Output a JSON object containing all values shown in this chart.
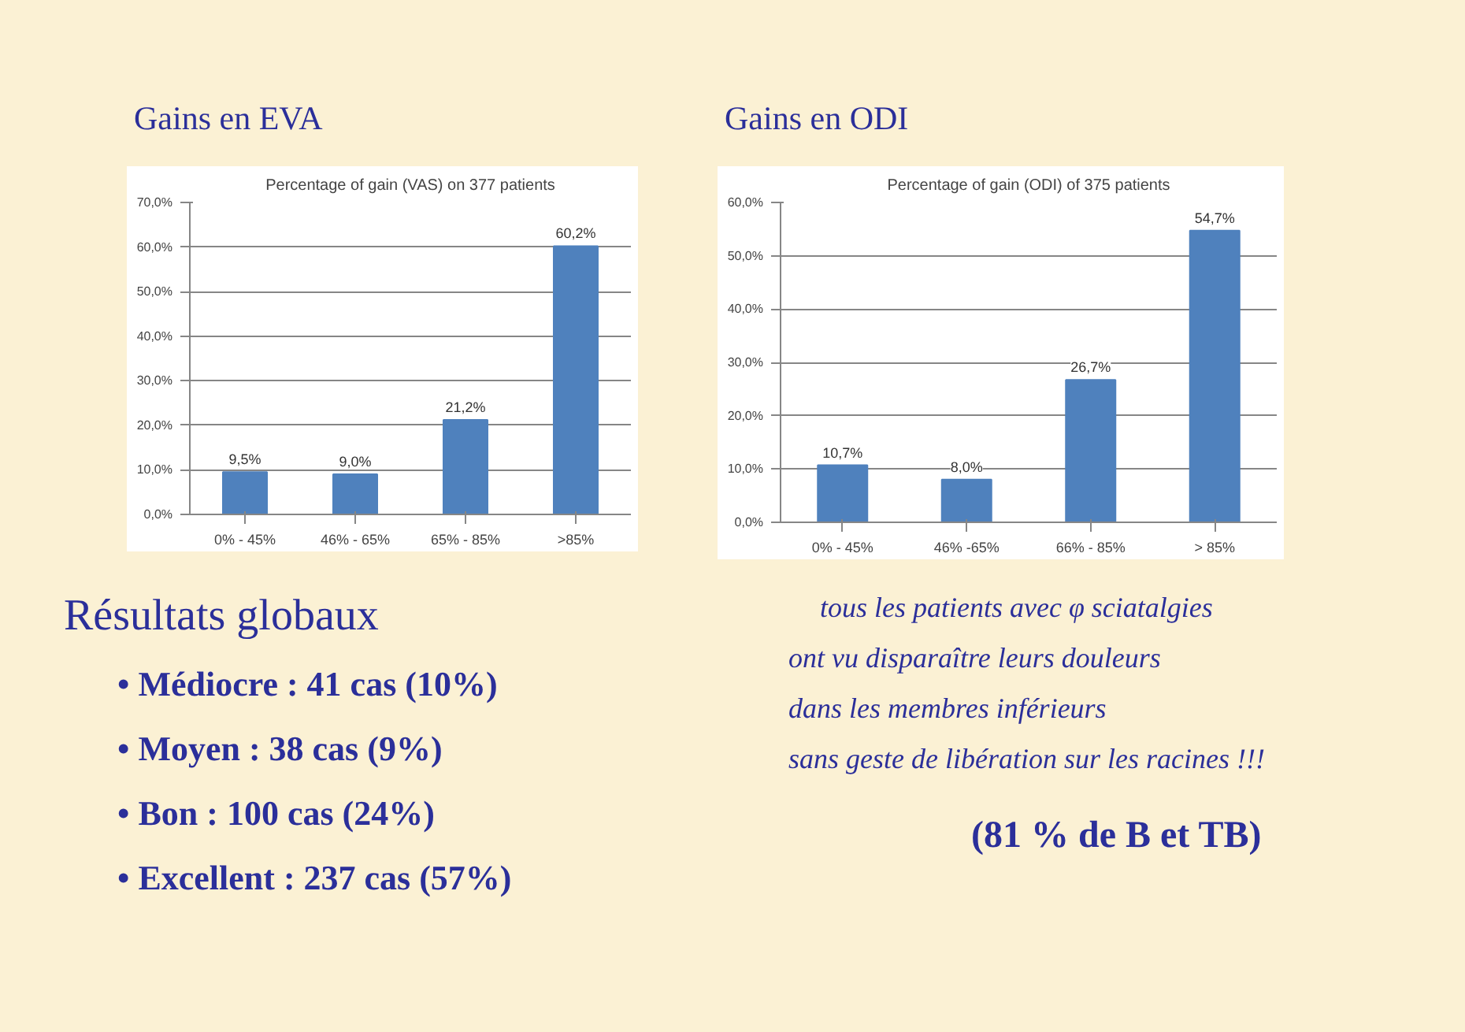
{
  "chart_data": [
    {
      "type": "bar",
      "subtitle": "Gains en EVA",
      "title": "Percentage of gain (VAS) on 377 patients",
      "categories": [
        "0% - 45%",
        "46% - 65%",
        "65% - 85%",
        ">85%"
      ],
      "values": [
        9.5,
        9.0,
        21.2,
        60.2
      ],
      "value_labels": [
        "9,5%",
        "9,0%",
        "21,2%",
        "60,2%"
      ],
      "color": "#4f81bd",
      "ylim": [
        0,
        70
      ],
      "yticks": [
        {
          "value": 0,
          "label": "0,0%"
        },
        {
          "value": 10,
          "label": "10,0%"
        },
        {
          "value": 20,
          "label": "20,0%"
        },
        {
          "value": 30,
          "label": "30,0%"
        },
        {
          "value": 40,
          "label": "40,0%"
        },
        {
          "value": 50,
          "label": "50,0%"
        },
        {
          "value": 60,
          "label": "60,0%"
        },
        {
          "value": 70,
          "label": "70,0%"
        }
      ],
      "grid": "y"
    },
    {
      "type": "bar",
      "subtitle": "Gains en ODI",
      "title": "Percentage of gain (ODI) of 375 patients",
      "categories": [
        "0% - 45%",
        "46% -65%",
        "66% - 85%",
        "> 85%"
      ],
      "values": [
        10.7,
        8.0,
        26.7,
        54.7
      ],
      "value_labels": [
        "10,7%",
        "8,0%",
        "26,7%",
        "54,7%"
      ],
      "color": "#4f81bd",
      "ylim": [
        0,
        60
      ],
      "yticks": [
        {
          "value": 0,
          "label": "0,0%"
        },
        {
          "value": 10,
          "label": "10,0%"
        },
        {
          "value": 20,
          "label": "20,0%"
        },
        {
          "value": 30,
          "label": "30,0%"
        },
        {
          "value": 40,
          "label": "40,0%"
        },
        {
          "value": 50,
          "label": "50,0%"
        },
        {
          "value": 60,
          "label": "60,0%"
        }
      ],
      "grid": "y"
    },
    {
      "type": "other",
      "title": "Résultats globaux",
      "annotations": [
        "• Médiocre : 41 cas (10%)",
        "• Moyen : 38 cas  (9%)",
        "• Bon : 100 cas  (24%)",
        "• Excellent : 237 cas (57%)"
      ]
    },
    {
      "type": "other",
      "annotations": [
        "tous les patients avec φ sciatalgies",
        "ont vu disparaître leurs douleurs",
        "dans les membres inférieurs",
        "sans geste de libération sur les racines !!!",
        "(81 % de B et TB)"
      ]
    }
  ]
}
